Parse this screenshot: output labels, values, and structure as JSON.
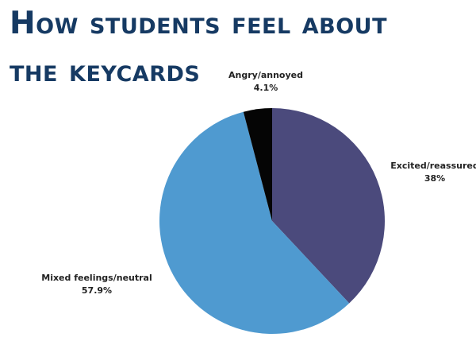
{
  "title": {
    "line1": "How students feel about",
    "line2": "the keycards"
  },
  "chart_data": {
    "type": "pie",
    "title": "How students feel about the keycards",
    "slices": [
      {
        "label": "Excited/reassured",
        "value": 38,
        "display": "38%",
        "color": "#4b4a7c"
      },
      {
        "label": "Mixed feelings/neutral",
        "value": 57.9,
        "display": "57.9%",
        "color": "#4f9ad0"
      },
      {
        "label": "Angry/annoyed",
        "value": 4.1,
        "display": "4.1%",
        "color": "#050505"
      }
    ],
    "start_angle_deg": 0,
    "direction": "clockwise",
    "labels_outside": true
  }
}
